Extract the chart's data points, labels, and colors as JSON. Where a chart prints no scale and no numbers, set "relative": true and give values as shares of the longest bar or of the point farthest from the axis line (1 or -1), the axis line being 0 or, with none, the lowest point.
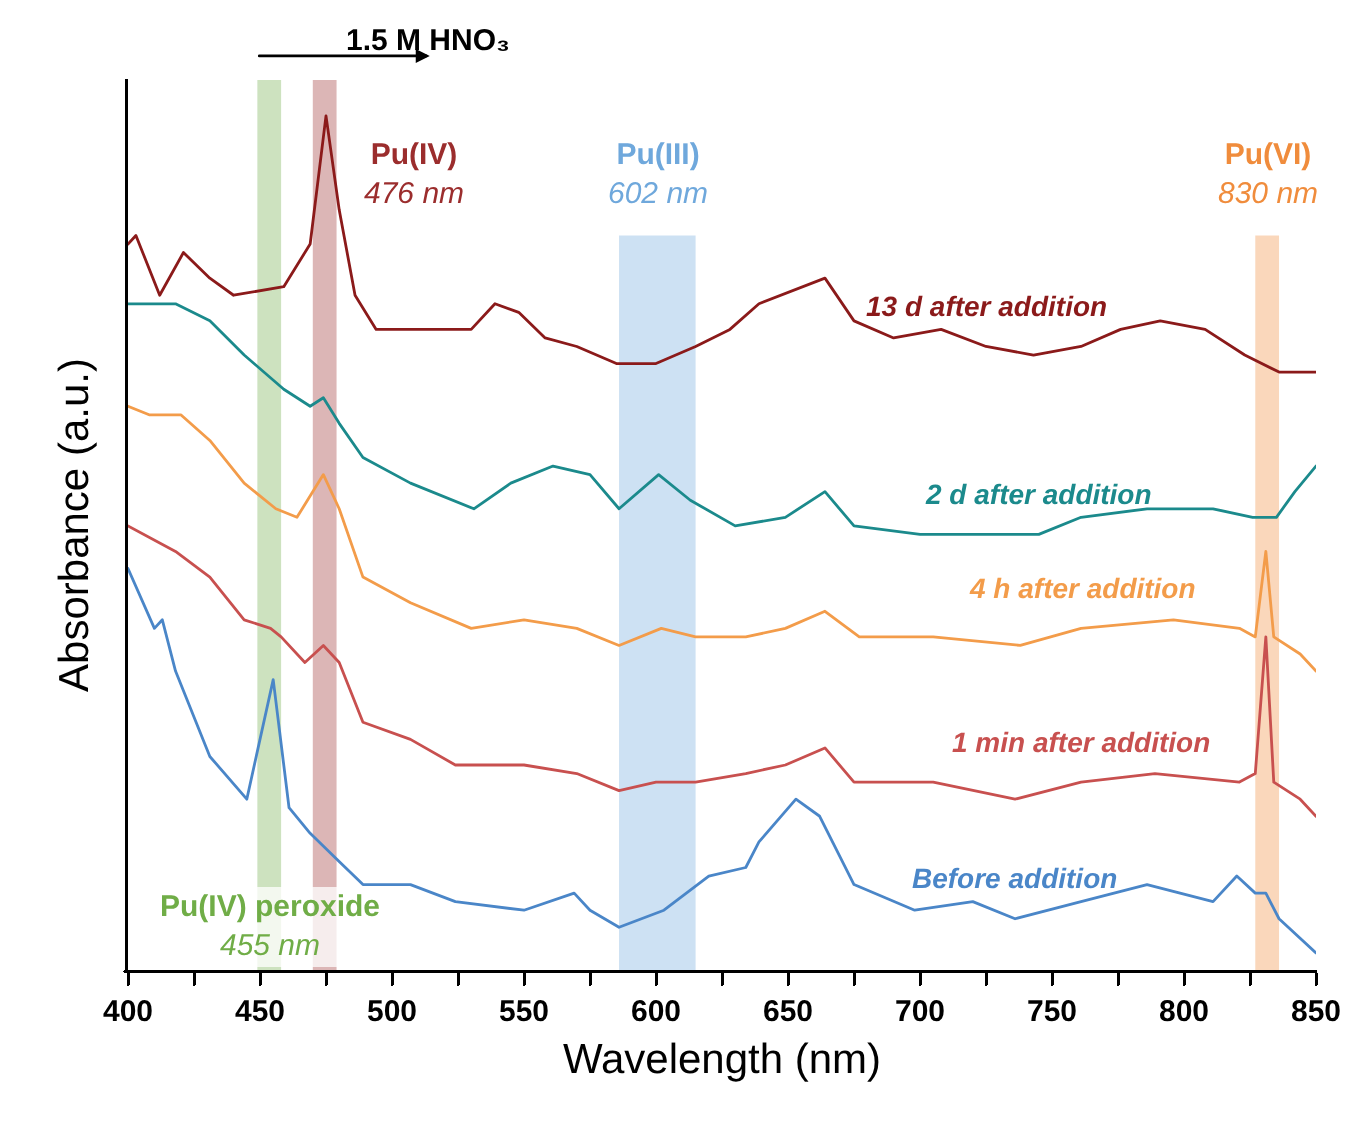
{
  "chart_data": {
    "type": "line",
    "relative": true,
    "xlabel": "Wavelength (nm)",
    "ylabel": "Absorbance (a.u.)",
    "xlim": [
      400,
      850
    ],
    "xticks": [
      400,
      {
        "value": 425,
        "label": null
      },
      450,
      {
        "value": 475,
        "label": null
      },
      500,
      {
        "value": 525,
        "label": null
      },
      550,
      {
        "value": 575,
        "label": null
      },
      600,
      {
        "value": 625,
        "label": null
      },
      650,
      {
        "value": 675,
        "label": null
      },
      700,
      {
        "value": 725,
        "label": null
      },
      750,
      {
        "value": 775,
        "label": null
      },
      800,
      {
        "value": 825,
        "label": null
      },
      850
    ],
    "grid": false,
    "line_style": "solid",
    "marker": "none",
    "tick_labels": "x",
    "series": [
      {
        "name": "13 d after addition",
        "color": "#8b1a1a",
        "x": [
          400,
          403,
          412,
          421,
          431,
          440,
          459,
          469,
          475,
          480,
          486,
          494,
          512,
          530,
          539,
          548,
          558,
          570,
          585,
          600,
          615,
          628,
          639,
          664,
          675,
          690,
          708,
          725,
          743,
          761,
          776,
          791,
          808,
          823,
          836,
          850
        ],
        "values": [
          0.85,
          0.86,
          0.79,
          0.84,
          0.81,
          0.79,
          0.8,
          0.85,
          1.0,
          0.89,
          0.79,
          0.75,
          0.75,
          0.75,
          0.78,
          0.77,
          0.74,
          0.73,
          0.71,
          0.71,
          0.73,
          0.75,
          0.78,
          0.81,
          0.76,
          0.74,
          0.75,
          0.73,
          0.72,
          0.73,
          0.75,
          0.76,
          0.75,
          0.72,
          0.7,
          0.7
        ]
      },
      {
        "name": "2 d after addition",
        "color": "#1b8a8c",
        "x": [
          400,
          418,
          431,
          444,
          459,
          469,
          474,
          480,
          489,
          507,
          531,
          545,
          561,
          575,
          586,
          601,
          613,
          630,
          649,
          664,
          675,
          700,
          720,
          745,
          761,
          786,
          811,
          826,
          835,
          842,
          850
        ],
        "values": [
          0.78,
          0.78,
          0.76,
          0.72,
          0.68,
          0.66,
          0.67,
          0.64,
          0.6,
          0.57,
          0.54,
          0.57,
          0.59,
          0.58,
          0.54,
          0.58,
          0.55,
          0.52,
          0.53,
          0.56,
          0.52,
          0.51,
          0.51,
          0.51,
          0.53,
          0.54,
          0.54,
          0.53,
          0.53,
          0.56,
          0.59
        ]
      },
      {
        "name": "4 h after addition",
        "color": "#f39c4a",
        "x": [
          400,
          408,
          420,
          431,
          444,
          456,
          464,
          474,
          480,
          489,
          507,
          530,
          550,
          570,
          586,
          602,
          615,
          634,
          649,
          664,
          677,
          705,
          738,
          761,
          796,
          821,
          827,
          831,
          834,
          844,
          850
        ],
        "values": [
          0.66,
          0.65,
          0.65,
          0.62,
          0.57,
          0.54,
          0.53,
          0.58,
          0.54,
          0.46,
          0.43,
          0.4,
          0.41,
          0.4,
          0.38,
          0.4,
          0.39,
          0.39,
          0.4,
          0.42,
          0.39,
          0.39,
          0.38,
          0.4,
          0.41,
          0.4,
          0.39,
          0.49,
          0.39,
          0.37,
          0.35
        ]
      },
      {
        "name": "1 min after addition",
        "color": "#c8504f",
        "x": [
          400,
          418,
          431,
          444,
          454,
          458,
          467,
          474,
          480,
          489,
          507,
          524,
          550,
          570,
          586,
          600,
          615,
          634,
          649,
          664,
          675,
          705,
          736,
          761,
          789,
          821,
          827,
          831,
          834,
          844,
          850
        ],
        "values": [
          0.52,
          0.49,
          0.46,
          0.41,
          0.4,
          0.39,
          0.36,
          0.38,
          0.36,
          0.29,
          0.27,
          0.24,
          0.24,
          0.23,
          0.21,
          0.22,
          0.22,
          0.23,
          0.24,
          0.26,
          0.22,
          0.22,
          0.2,
          0.22,
          0.23,
          0.22,
          0.23,
          0.39,
          0.22,
          0.2,
          0.18
        ]
      },
      {
        "name": "Before addition",
        "color": "#4a86c8",
        "x": [
          400,
          410,
          413,
          418,
          431,
          445,
          455,
          461,
          469,
          479,
          489,
          507,
          524,
          550,
          569,
          575,
          586,
          603,
          620,
          634,
          639,
          653,
          662,
          675,
          698,
          720,
          736,
          761,
          786,
          811,
          820,
          827,
          831,
          836,
          850
        ],
        "values": [
          0.47,
          0.4,
          0.41,
          0.35,
          0.25,
          0.2,
          0.34,
          0.19,
          0.16,
          0.13,
          0.1,
          0.1,
          0.08,
          0.07,
          0.09,
          0.07,
          0.05,
          0.07,
          0.11,
          0.12,
          0.15,
          0.2,
          0.18,
          0.1,
          0.07,
          0.08,
          0.06,
          0.08,
          0.1,
          0.08,
          0.11,
          0.09,
          0.09,
          0.06,
          0.02
        ]
      }
    ],
    "bands": [
      {
        "axis": "x",
        "from": 470,
        "to": 479,
        "color": "#9b2d2d",
        "label": "Pu(IV)\n476 nm"
      },
      {
        "axis": "x",
        "from": 449,
        "to": 458,
        "color": "#70ad47",
        "label": "Pu(IV) peroxide\n455 nm"
      },
      {
        "axis": "x",
        "from": 586,
        "to": 615,
        "color": "#6fa8dc",
        "label": "Pu(III)\n602 nm"
      },
      {
        "axis": "x",
        "from": 827,
        "to": 836,
        "color": "#f08c3c",
        "label": "Pu(VI)\n830 nm"
      }
    ],
    "annotations": [
      "1.5 M HNO₃"
    ]
  }
}
